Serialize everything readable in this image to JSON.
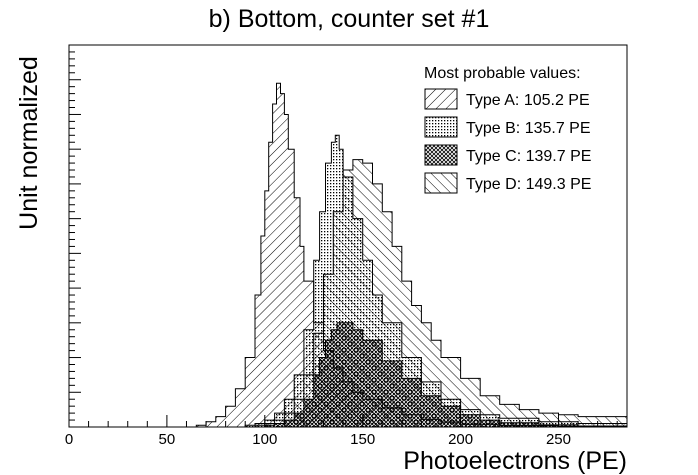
{
  "chart_data": {
    "type": "area",
    "title": "b) Bottom, counter set #1",
    "xlabel": "Photoelectrons (PE)",
    "ylabel": "Unit normalized",
    "xlim": [
      0,
      285
    ],
    "ylim": [
      0,
      1.1
    ],
    "x_ticks": [
      "0",
      "50",
      "100",
      "150",
      "200",
      "250"
    ],
    "legend_title": "Most probable values:",
    "legend_position": "top-right",
    "series": [
      {
        "name": "Type A: 105.2 PE",
        "pattern": "hatch-forward",
        "points": [
          [
            60,
            0
          ],
          [
            65,
            0.005
          ],
          [
            70,
            0.015
          ],
          [
            75,
            0.03
          ],
          [
            80,
            0.06
          ],
          [
            85,
            0.11
          ],
          [
            90,
            0.2
          ],
          [
            95,
            0.38
          ],
          [
            98,
            0.55
          ],
          [
            100,
            0.68
          ],
          [
            102,
            0.82
          ],
          [
            104,
            0.93
          ],
          [
            106,
            0.99
          ],
          [
            108,
            0.96
          ],
          [
            110,
            0.9
          ],
          [
            112,
            0.8
          ],
          [
            115,
            0.66
          ],
          [
            118,
            0.52
          ],
          [
            120,
            0.42
          ],
          [
            125,
            0.3
          ],
          [
            130,
            0.22
          ],
          [
            135,
            0.17
          ],
          [
            140,
            0.13
          ],
          [
            145,
            0.1
          ],
          [
            150,
            0.08
          ],
          [
            160,
            0.055
          ],
          [
            170,
            0.035
          ],
          [
            180,
            0.022
          ],
          [
            190,
            0.014
          ],
          [
            200,
            0.008
          ],
          [
            220,
            0.004
          ],
          [
            250,
            0.002
          ],
          [
            285,
            0.001
          ]
        ]
      },
      {
        "name": "Type B: 135.7 PE",
        "pattern": "dots",
        "points": [
          [
            85,
            0
          ],
          [
            90,
            0.005
          ],
          [
            95,
            0.01
          ],
          [
            100,
            0.02
          ],
          [
            105,
            0.04
          ],
          [
            110,
            0.08
          ],
          [
            115,
            0.15
          ],
          [
            120,
            0.28
          ],
          [
            125,
            0.48
          ],
          [
            128,
            0.62
          ],
          [
            131,
            0.76
          ],
          [
            134,
            0.82
          ],
          [
            136,
            0.84
          ],
          [
            138,
            0.8
          ],
          [
            140,
            0.72
          ],
          [
            145,
            0.6
          ],
          [
            150,
            0.48
          ],
          [
            155,
            0.38
          ],
          [
            160,
            0.3
          ],
          [
            170,
            0.2
          ],
          [
            180,
            0.13
          ],
          [
            190,
            0.08
          ],
          [
            200,
            0.05
          ],
          [
            210,
            0.035
          ],
          [
            220,
            0.025
          ],
          [
            240,
            0.015
          ],
          [
            260,
            0.01
          ],
          [
            285,
            0.005
          ]
        ]
      },
      {
        "name": "Type C: 139.7 PE",
        "pattern": "crosshatch-fine",
        "points": [
          [
            95,
            0
          ],
          [
            100,
            0.005
          ],
          [
            105,
            0.01
          ],
          [
            110,
            0.02
          ],
          [
            115,
            0.04
          ],
          [
            120,
            0.08
          ],
          [
            125,
            0.15
          ],
          [
            128,
            0.2
          ],
          [
            131,
            0.25
          ],
          [
            134,
            0.28
          ],
          [
            137,
            0.3
          ],
          [
            140,
            0.3
          ],
          [
            145,
            0.28
          ],
          [
            150,
            0.25
          ],
          [
            160,
            0.19
          ],
          [
            170,
            0.14
          ],
          [
            180,
            0.09
          ],
          [
            190,
            0.06
          ],
          [
            200,
            0.035
          ],
          [
            210,
            0.02
          ],
          [
            220,
            0.012
          ],
          [
            240,
            0.006
          ],
          [
            260,
            0.003
          ],
          [
            285,
            0.001
          ]
        ]
      },
      {
        "name": "Type D: 149.3 PE",
        "pattern": "hatch-backward",
        "points": [
          [
            90,
            0
          ],
          [
            95,
            0.005
          ],
          [
            100,
            0.01
          ],
          [
            105,
            0.02
          ],
          [
            110,
            0.04
          ],
          [
            115,
            0.08
          ],
          [
            120,
            0.15
          ],
          [
            125,
            0.27
          ],
          [
            130,
            0.44
          ],
          [
            135,
            0.62
          ],
          [
            140,
            0.74
          ],
          [
            145,
            0.77
          ],
          [
            150,
            0.76
          ],
          [
            155,
            0.7
          ],
          [
            160,
            0.62
          ],
          [
            165,
            0.52
          ],
          [
            170,
            0.42
          ],
          [
            175,
            0.35
          ],
          [
            180,
            0.3
          ],
          [
            185,
            0.25
          ],
          [
            190,
            0.2
          ],
          [
            200,
            0.14
          ],
          [
            210,
            0.09
          ],
          [
            220,
            0.065
          ],
          [
            230,
            0.05
          ],
          [
            240,
            0.04
          ],
          [
            250,
            0.035
          ],
          [
            260,
            0.03
          ],
          [
            270,
            0.03
          ],
          [
            285,
            0.025
          ]
        ]
      }
    ]
  }
}
